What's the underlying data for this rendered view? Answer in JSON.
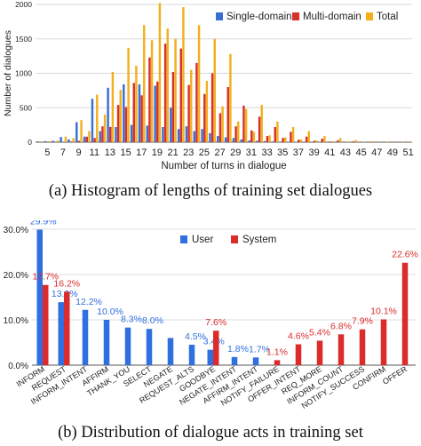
{
  "figure_a": {
    "caption": "(a) Histogram of lengths of training set dialogues",
    "legend_labels": [
      "Single-domain",
      "Multi-domain",
      "Total"
    ]
  },
  "figure_b": {
    "caption": "(b) Distribution of dialogue acts in training set",
    "legend_labels": [
      "User",
      "System"
    ]
  },
  "chart_data": [
    {
      "type": "bar",
      "xlabel": "Number of turns in dialogue",
      "ylabel": "Number of dialogues",
      "ylim": [
        0,
        2000
      ],
      "yticks": [
        "0",
        "500",
        "1000",
        "1500",
        "2000"
      ],
      "xticks": [
        "5",
        "7",
        "9",
        "11",
        "13",
        "15",
        "17",
        "19",
        "21",
        "23",
        "25",
        "27",
        "29",
        "31",
        "33",
        "35",
        "37",
        "39",
        "41",
        "43",
        "45",
        "47",
        "49",
        "51"
      ],
      "grid": true,
      "legend": "top-right",
      "colors": [
        "#3b6fd6",
        "#d7312a",
        "#f2b01e"
      ],
      "categories": [
        4,
        5,
        6,
        7,
        8,
        9,
        10,
        11,
        12,
        13,
        14,
        15,
        16,
        17,
        18,
        19,
        20,
        21,
        22,
        23,
        24,
        25,
        26,
        27,
        28,
        29,
        30,
        31,
        32,
        33,
        34,
        35,
        36,
        37,
        38,
        39,
        40,
        41,
        42,
        43,
        44,
        45,
        46,
        47,
        48,
        49,
        50,
        51
      ],
      "series": [
        {
          "name": "Single-domain",
          "values": [
            10,
            15,
            20,
            75,
            40,
            290,
            80,
            630,
            160,
            790,
            220,
            840,
            250,
            840,
            240,
            820,
            220,
            500,
            190,
            230,
            160,
            190,
            130,
            90,
            70,
            60,
            40,
            25,
            20,
            15,
            10,
            8,
            6,
            5,
            4,
            3,
            2,
            2,
            1,
            1,
            1,
            0,
            0,
            0,
            0,
            0,
            0,
            0
          ]
        },
        {
          "name": "Multi-domain",
          "values": [
            0,
            0,
            0,
            0,
            10,
            20,
            80,
            60,
            230,
            220,
            540,
            510,
            860,
            680,
            1230,
            880,
            1430,
            1020,
            1360,
            830,
            1150,
            700,
            1000,
            420,
            800,
            230,
            530,
            170,
            370,
            90,
            220,
            60,
            150,
            35,
            80,
            20,
            50,
            10,
            25,
            5,
            12,
            3,
            6,
            2,
            3,
            1,
            1,
            0
          ]
        },
        {
          "name": "Total",
          "values": [
            12,
            15,
            25,
            80,
            60,
            320,
            160,
            690,
            400,
            1020,
            760,
            1370,
            1110,
            1700,
            1480,
            2020,
            1650,
            1500,
            1960,
            1050,
            1700,
            890,
            1500,
            520,
            1280,
            300,
            480,
            150,
            540,
            100,
            300,
            70,
            220,
            40,
            160,
            25,
            90,
            15,
            60,
            10,
            30,
            5,
            15,
            3,
            8,
            2,
            4,
            10
          ]
        }
      ]
    },
    {
      "type": "bar",
      "ylim": [
        0,
        30
      ],
      "yticks": [
        "0.0%",
        "10.0%",
        "20.0%",
        "30.0%"
      ],
      "grid": true,
      "legend": "top-center",
      "colors": [
        "#2f6fe0",
        "#db2b2b"
      ],
      "categories": [
        "INFORM",
        "REQUEST",
        "INFORM_INTENT",
        "AFFIRM",
        "THANK_YOU",
        "SELECT",
        "NEGATE",
        "REQUEST_ALTS",
        "GOODBYE",
        "NEGATE_INTENT",
        "AFFIRM_INTENT",
        "NOTIFY_FAILURE",
        "OFFER_INTENT",
        "REQ_MORE",
        "INFORM_COUNT",
        "NOTIFY_SUCCESS",
        "CONFIRM",
        "OFFER"
      ],
      "series": [
        {
          "name": "User",
          "values": [
            29.9,
            13.9,
            12.2,
            10.0,
            8.3,
            8.0,
            6.0,
            4.5,
            3.4,
            1.8,
            1.7,
            null,
            null,
            null,
            null,
            null,
            null,
            null
          ],
          "labels": [
            "29.9%",
            "13.9%",
            "12.2%",
            "10.0%",
            "8.3%",
            "8.0%",
            "",
            "4.5%",
            "3.4%",
            "1.8%",
            "1.7%",
            "",
            "",
            "",
            "",
            "",
            "",
            ""
          ]
        },
        {
          "name": "System",
          "values": [
            17.7,
            16.2,
            null,
            null,
            null,
            null,
            null,
            null,
            7.6,
            null,
            null,
            1.1,
            4.6,
            5.4,
            6.8,
            7.9,
            10.1,
            22.6
          ],
          "labels": [
            "17.7%",
            "16.2%",
            "",
            "",
            "",
            "",
            "",
            "",
            "7.6%",
            "",
            "",
            "1.1%",
            "4.6%",
            "5.4%",
            "6.8%",
            "7.9%",
            "10.1%",
            "22.6%"
          ]
        }
      ]
    }
  ]
}
